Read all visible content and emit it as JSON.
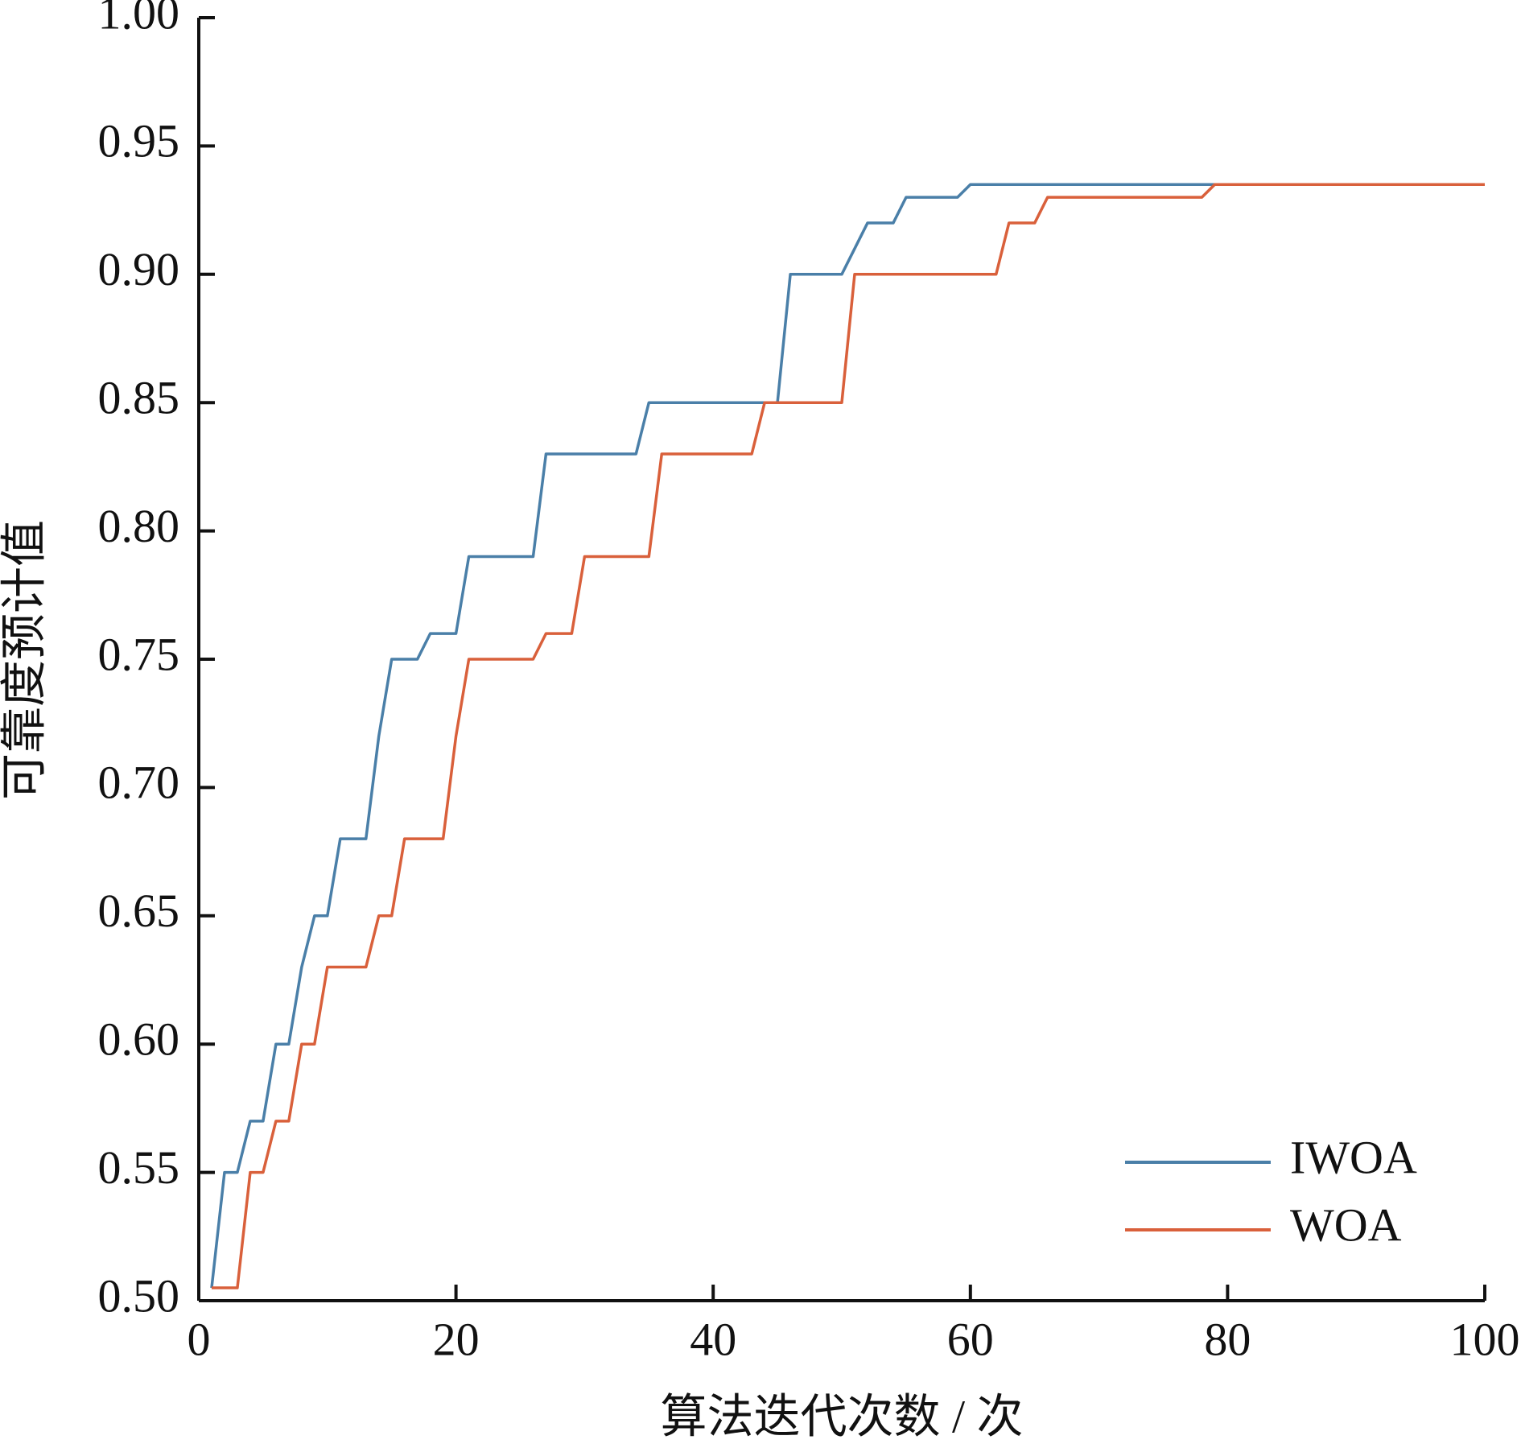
{
  "chart_data": {
    "type": "line",
    "x_label": "算法迭代次数 / 次",
    "y_label": "可靠度预计值",
    "x": [
      1,
      2,
      3,
      4,
      5,
      6,
      7,
      8,
      9,
      10,
      11,
      12,
      13,
      14,
      15,
      16,
      17,
      18,
      19,
      20,
      21,
      22,
      23,
      24,
      25,
      26,
      27,
      28,
      29,
      30,
      31,
      32,
      33,
      34,
      35,
      36,
      37,
      38,
      39,
      40,
      41,
      42,
      43,
      44,
      45,
      46,
      47,
      48,
      49,
      50,
      51,
      52,
      53,
      54,
      55,
      56,
      57,
      58,
      59,
      60,
      61,
      62,
      63,
      64,
      65,
      66,
      67,
      68,
      69,
      70,
      71,
      72,
      73,
      74,
      75,
      76,
      77,
      78,
      79,
      80,
      81,
      82,
      83,
      84,
      85,
      86,
      87,
      88,
      89,
      90,
      91,
      92,
      93,
      94,
      95,
      96,
      97,
      98,
      99,
      100
    ],
    "series": [
      {
        "name": "IWOA",
        "color": "#4a7fa8",
        "values": [
          0.505,
          0.55,
          0.55,
          0.57,
          0.57,
          0.6,
          0.6,
          0.63,
          0.65,
          0.65,
          0.68,
          0.68,
          0.68,
          0.72,
          0.75,
          0.75,
          0.75,
          0.76,
          0.76,
          0.76,
          0.79,
          0.79,
          0.79,
          0.79,
          0.79,
          0.79,
          0.83,
          0.83,
          0.83,
          0.83,
          0.83,
          0.83,
          0.83,
          0.83,
          0.85,
          0.85,
          0.85,
          0.85,
          0.85,
          0.85,
          0.85,
          0.85,
          0.85,
          0.85,
          0.85,
          0.9,
          0.9,
          0.9,
          0.9,
          0.9,
          0.91,
          0.92,
          0.92,
          0.92,
          0.93,
          0.93,
          0.93,
          0.93,
          0.93,
          0.935,
          0.935,
          0.935,
          0.935,
          0.935,
          0.935,
          0.935,
          0.935,
          0.935,
          0.935,
          0.935,
          0.935,
          0.935,
          0.935,
          0.935,
          0.935,
          0.935,
          0.935,
          0.935,
          0.935,
          0.935,
          0.935,
          0.935,
          0.935,
          0.935,
          0.935,
          0.935,
          0.935,
          0.935,
          0.935,
          0.935,
          0.935,
          0.935,
          0.935,
          0.935,
          0.935,
          0.935,
          0.935,
          0.935,
          0.935,
          0.935
        ]
      },
      {
        "name": "WOA",
        "color": "#d9603b",
        "values": [
          0.505,
          0.505,
          0.505,
          0.55,
          0.55,
          0.57,
          0.57,
          0.6,
          0.6,
          0.63,
          0.63,
          0.63,
          0.63,
          0.65,
          0.65,
          0.68,
          0.68,
          0.68,
          0.68,
          0.72,
          0.75,
          0.75,
          0.75,
          0.75,
          0.75,
          0.75,
          0.76,
          0.76,
          0.76,
          0.79,
          0.79,
          0.79,
          0.79,
          0.79,
          0.79,
          0.83,
          0.83,
          0.83,
          0.83,
          0.83,
          0.83,
          0.83,
          0.83,
          0.85,
          0.85,
          0.85,
          0.85,
          0.85,
          0.85,
          0.85,
          0.9,
          0.9,
          0.9,
          0.9,
          0.9,
          0.9,
          0.9,
          0.9,
          0.9,
          0.9,
          0.9,
          0.9,
          0.92,
          0.92,
          0.92,
          0.93,
          0.93,
          0.93,
          0.93,
          0.93,
          0.93,
          0.93,
          0.93,
          0.93,
          0.93,
          0.93,
          0.93,
          0.93,
          0.935,
          0.935,
          0.935,
          0.935,
          0.935,
          0.935,
          0.935,
          0.935,
          0.935,
          0.935,
          0.935,
          0.935,
          0.935,
          0.935,
          0.935,
          0.935,
          0.935,
          0.935,
          0.935,
          0.935,
          0.935,
          0.935
        ]
      }
    ],
    "xlim": [
      0,
      100
    ],
    "xticks": [
      0,
      20,
      40,
      60,
      80,
      100
    ],
    "ylim": [
      0.5,
      1.0
    ],
    "yticks": [
      {
        "value": 0.5,
        "label": "0.50"
      },
      {
        "value": 0.55,
        "label": "0.55"
      },
      {
        "value": 0.6,
        "label": "0.60"
      },
      {
        "value": 0.65,
        "label": "0.65"
      },
      {
        "value": 0.7,
        "label": "0.70"
      },
      {
        "value": 0.75,
        "label": "0.75"
      },
      {
        "value": 0.8,
        "label": "0.80"
      },
      {
        "value": 0.85,
        "label": "0.85"
      },
      {
        "value": 0.9,
        "label": "0.90"
      },
      {
        "value": 0.95,
        "label": "0.95"
      },
      {
        "value": 1.0,
        "label": "1.00"
      }
    ],
    "legend": "lower right",
    "grid": false
  }
}
